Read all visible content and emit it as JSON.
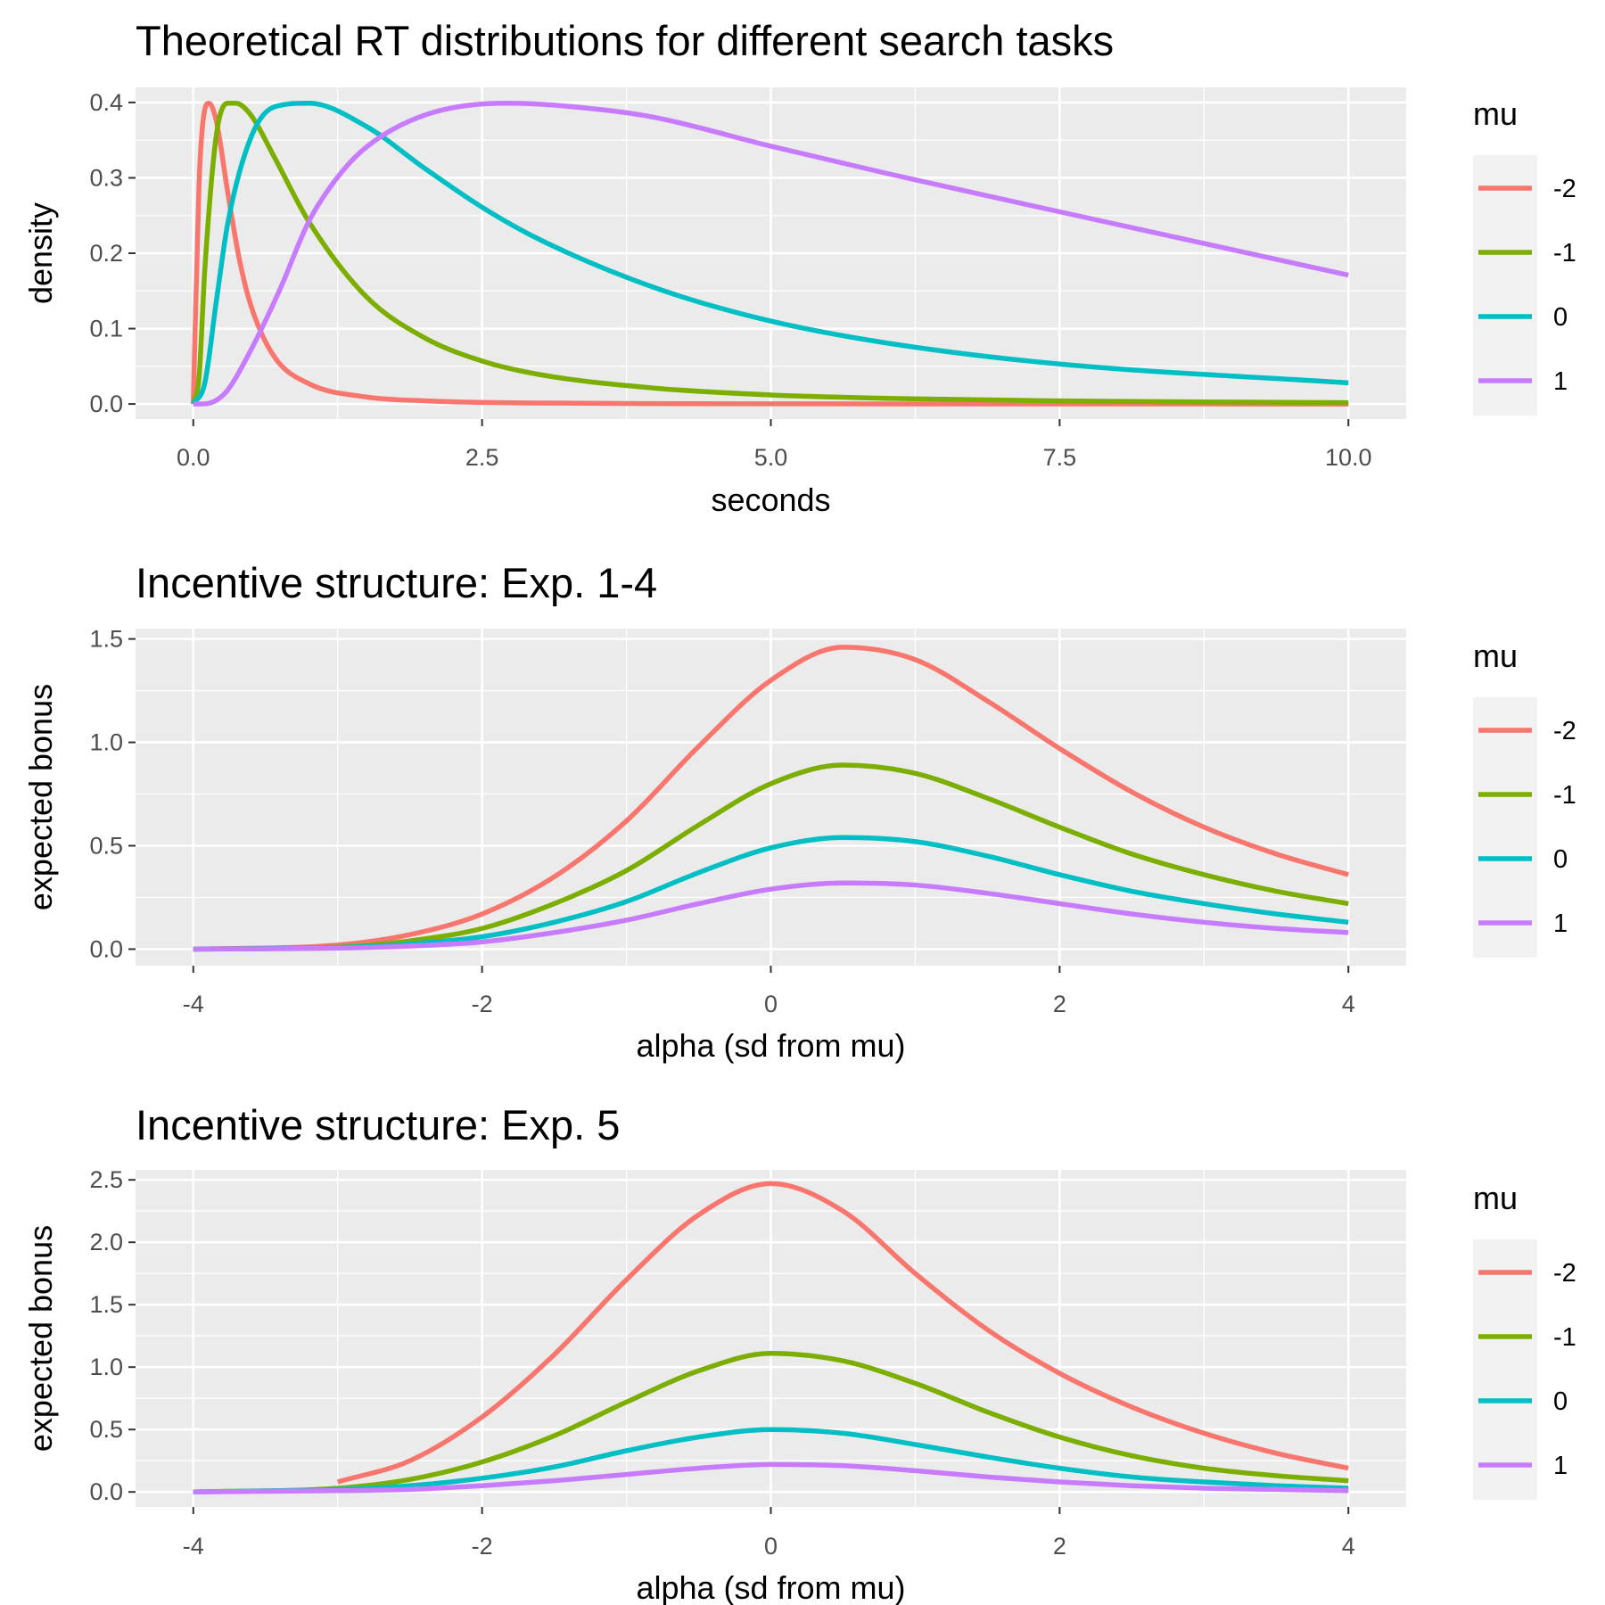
{
  "chart_data": [
    {
      "type": "line",
      "title": "Theoretical RT distributions for different search tasks",
      "xlabel": "seconds",
      "ylabel": "density",
      "xlim": [
        -0.5,
        10.5
      ],
      "ylim": [
        -0.02,
        0.42
      ],
      "xticks": [
        0,
        2.5,
        5,
        7.5,
        10
      ],
      "xtick_labels": [
        "0.0",
        "2.5",
        "5.0",
        "7.5",
        "10.0"
      ],
      "yticks": [
        0,
        0.1,
        0.2,
        0.3,
        0.4
      ],
      "ytick_labels": [
        "0.0",
        "0.1",
        "0.2",
        "0.3",
        "0.4"
      ],
      "legend_title": "mu",
      "legend_position": "right",
      "grid": true,
      "series": [
        {
          "name": "-2",
          "color": "#F8766D",
          "x": [
            0,
            0.05,
            0.1,
            0.135,
            0.2,
            0.3,
            0.4,
            0.5,
            0.7,
            1.0,
            1.5,
            2.0,
            3.0,
            5.0,
            7.5,
            10.0
          ],
          "y": [
            0,
            0.292,
            0.391,
            0.399,
            0.375,
            0.279,
            0.191,
            0.13,
            0.063,
            0.027,
            0.0093,
            0.0042,
            0.0013,
            0.0003,
            0.0001,
            0.0
          ]
        },
        {
          "name": "-1",
          "color": "#7CAE00",
          "x": [
            0,
            0.05,
            0.1,
            0.2,
            0.3,
            0.368,
            0.5,
            0.7,
            1.0,
            1.5,
            2.0,
            2.5,
            3.0,
            4.0,
            5.0,
            6.0,
            7.5,
            10.0
          ],
          "y": [
            0,
            0.036,
            0.179,
            0.357,
            0.399,
            0.399,
            0.383,
            0.328,
            0.242,
            0.142,
            0.088,
            0.057,
            0.039,
            0.021,
            0.012,
            0.0075,
            0.0041,
            0.0017
          ]
        },
        {
          "name": "0",
          "color": "#00BFC4",
          "x": [
            0,
            0.1,
            0.2,
            0.3,
            0.5,
            0.7,
            1.0,
            1.5,
            2.0,
            2.5,
            3.0,
            4.0,
            5.0,
            6.0,
            7.5,
            10.0
          ],
          "y": [
            0,
            0.028,
            0.137,
            0.241,
            0.354,
            0.394,
            0.399,
            0.368,
            0.313,
            0.261,
            0.218,
            0.154,
            0.11,
            0.081,
            0.053,
            0.028
          ]
        },
        {
          "name": "1",
          "color": "#C77CFF",
          "x": [
            0,
            0.1,
            0.2,
            0.3,
            0.5,
            0.75,
            1.0,
            1.25,
            1.5,
            2.0,
            2.72,
            3.5,
            4.0,
            5.0,
            6.0,
            7.5,
            10.0
          ],
          "y": [
            0,
            0.0003,
            0.005,
            0.019,
            0.072,
            0.152,
            0.242,
            0.301,
            0.341,
            0.383,
            0.399,
            0.391,
            0.38,
            0.342,
            0.306,
            0.255,
            0.171
          ]
        }
      ]
    },
    {
      "type": "line",
      "title": "Incentive structure: Exp. 1-4",
      "xlabel": "alpha (sd from mu)",
      "ylabel": "expected bonus",
      "xlim": [
        -4.4,
        4.4
      ],
      "ylim": [
        -0.08,
        1.55
      ],
      "xticks": [
        -4,
        -2,
        0,
        2,
        4
      ],
      "xtick_labels": [
        "-4",
        "-2",
        "0",
        "2",
        "4"
      ],
      "yticks": [
        0,
        0.5,
        1.0,
        1.5
      ],
      "ytick_labels": [
        "0.0",
        "0.5",
        "1.0",
        "1.5"
      ],
      "legend_title": "mu",
      "legend_position": "right",
      "grid": true,
      "series": [
        {
          "name": "-2",
          "color": "#F8766D",
          "x": [
            -4,
            -3,
            -2.5,
            -2,
            -1.5,
            -1,
            -0.5,
            0,
            0.5,
            1,
            1.5,
            2,
            2.5,
            3,
            3.5,
            4
          ],
          "y": [
            0,
            0.02,
            0.07,
            0.17,
            0.35,
            0.62,
            0.98,
            1.3,
            1.46,
            1.4,
            1.2,
            0.97,
            0.76,
            0.59,
            0.46,
            0.36
          ]
        },
        {
          "name": "-1",
          "color": "#7CAE00",
          "x": [
            -4,
            -3,
            -2.5,
            -2,
            -1.5,
            -1,
            -0.5,
            0,
            0.5,
            1,
            1.5,
            2,
            2.5,
            3,
            3.5,
            4
          ],
          "y": [
            0,
            0.01,
            0.04,
            0.1,
            0.22,
            0.38,
            0.6,
            0.8,
            0.89,
            0.85,
            0.73,
            0.59,
            0.46,
            0.36,
            0.28,
            0.22
          ]
        },
        {
          "name": "0",
          "color": "#00BFC4",
          "x": [
            -4,
            -3,
            -2.5,
            -2,
            -1.5,
            -1,
            -0.5,
            0,
            0.5,
            1,
            1.5,
            2,
            2.5,
            3,
            3.5,
            4
          ],
          "y": [
            0,
            0.008,
            0.025,
            0.06,
            0.13,
            0.23,
            0.37,
            0.49,
            0.54,
            0.52,
            0.45,
            0.36,
            0.28,
            0.22,
            0.17,
            0.13
          ]
        },
        {
          "name": "1",
          "color": "#C77CFF",
          "x": [
            -4,
            -3,
            -2.5,
            -2,
            -1.5,
            -1,
            -0.5,
            0,
            0.5,
            1,
            1.5,
            2,
            2.5,
            3,
            3.5,
            4
          ],
          "y": [
            0,
            0.005,
            0.015,
            0.035,
            0.08,
            0.14,
            0.22,
            0.29,
            0.32,
            0.31,
            0.27,
            0.22,
            0.17,
            0.13,
            0.1,
            0.08
          ]
        }
      ]
    },
    {
      "type": "line",
      "title": "Incentive structure: Exp. 5",
      "xlabel": "alpha (sd from mu)",
      "ylabel": "expected bonus",
      "xlim": [
        -4.4,
        4.4
      ],
      "ylim": [
        -0.12,
        2.58
      ],
      "xticks": [
        -4,
        -2,
        0,
        2,
        4
      ],
      "xtick_labels": [
        "-4",
        "-2",
        "0",
        "2",
        "4"
      ],
      "yticks": [
        0,
        0.5,
        1.0,
        1.5,
        2.0,
        2.5
      ],
      "ytick_labels": [
        "0.0",
        "0.5",
        "1.0",
        "1.5",
        "2.0",
        "2.5"
      ],
      "legend_title": "mu",
      "legend_position": "right",
      "grid": true,
      "series": [
        {
          "name": "-2",
          "color": "#F8766D",
          "x": [
            -3,
            -2.5,
            -2,
            -1.5,
            -1,
            -0.5,
            0,
            0.5,
            1,
            1.5,
            2,
            2.5,
            3,
            3.5,
            4
          ],
          "y": [
            0.08,
            0.25,
            0.6,
            1.1,
            1.7,
            2.22,
            2.47,
            2.25,
            1.75,
            1.3,
            0.95,
            0.68,
            0.47,
            0.31,
            0.19
          ]
        },
        {
          "name": "-1",
          "color": "#7CAE00",
          "x": [
            -4,
            -3,
            -2.5,
            -2,
            -1.5,
            -1,
            -0.5,
            0,
            0.5,
            1,
            1.5,
            2,
            2.5,
            3,
            3.5,
            4
          ],
          "y": [
            0,
            0.03,
            0.1,
            0.24,
            0.45,
            0.72,
            0.97,
            1.11,
            1.05,
            0.87,
            0.64,
            0.44,
            0.29,
            0.19,
            0.13,
            0.09
          ]
        },
        {
          "name": "0",
          "color": "#00BFC4",
          "x": [
            -4,
            -3,
            -2.5,
            -2,
            -1.5,
            -1,
            -0.5,
            0,
            0.5,
            1,
            1.5,
            2,
            2.5,
            3,
            3.5,
            4
          ],
          "y": [
            0,
            0.02,
            0.05,
            0.11,
            0.2,
            0.33,
            0.44,
            0.5,
            0.47,
            0.38,
            0.28,
            0.19,
            0.12,
            0.08,
            0.05,
            0.03
          ]
        },
        {
          "name": "1",
          "color": "#C77CFF",
          "x": [
            -4,
            -3,
            -2.5,
            -2,
            -1.5,
            -1,
            -0.5,
            0,
            0.5,
            1,
            1.5,
            2,
            2.5,
            3,
            3.5,
            4
          ],
          "y": [
            0,
            0.01,
            0.02,
            0.05,
            0.09,
            0.14,
            0.19,
            0.22,
            0.21,
            0.17,
            0.12,
            0.08,
            0.05,
            0.03,
            0.02,
            0.01
          ]
        }
      ]
    }
  ]
}
